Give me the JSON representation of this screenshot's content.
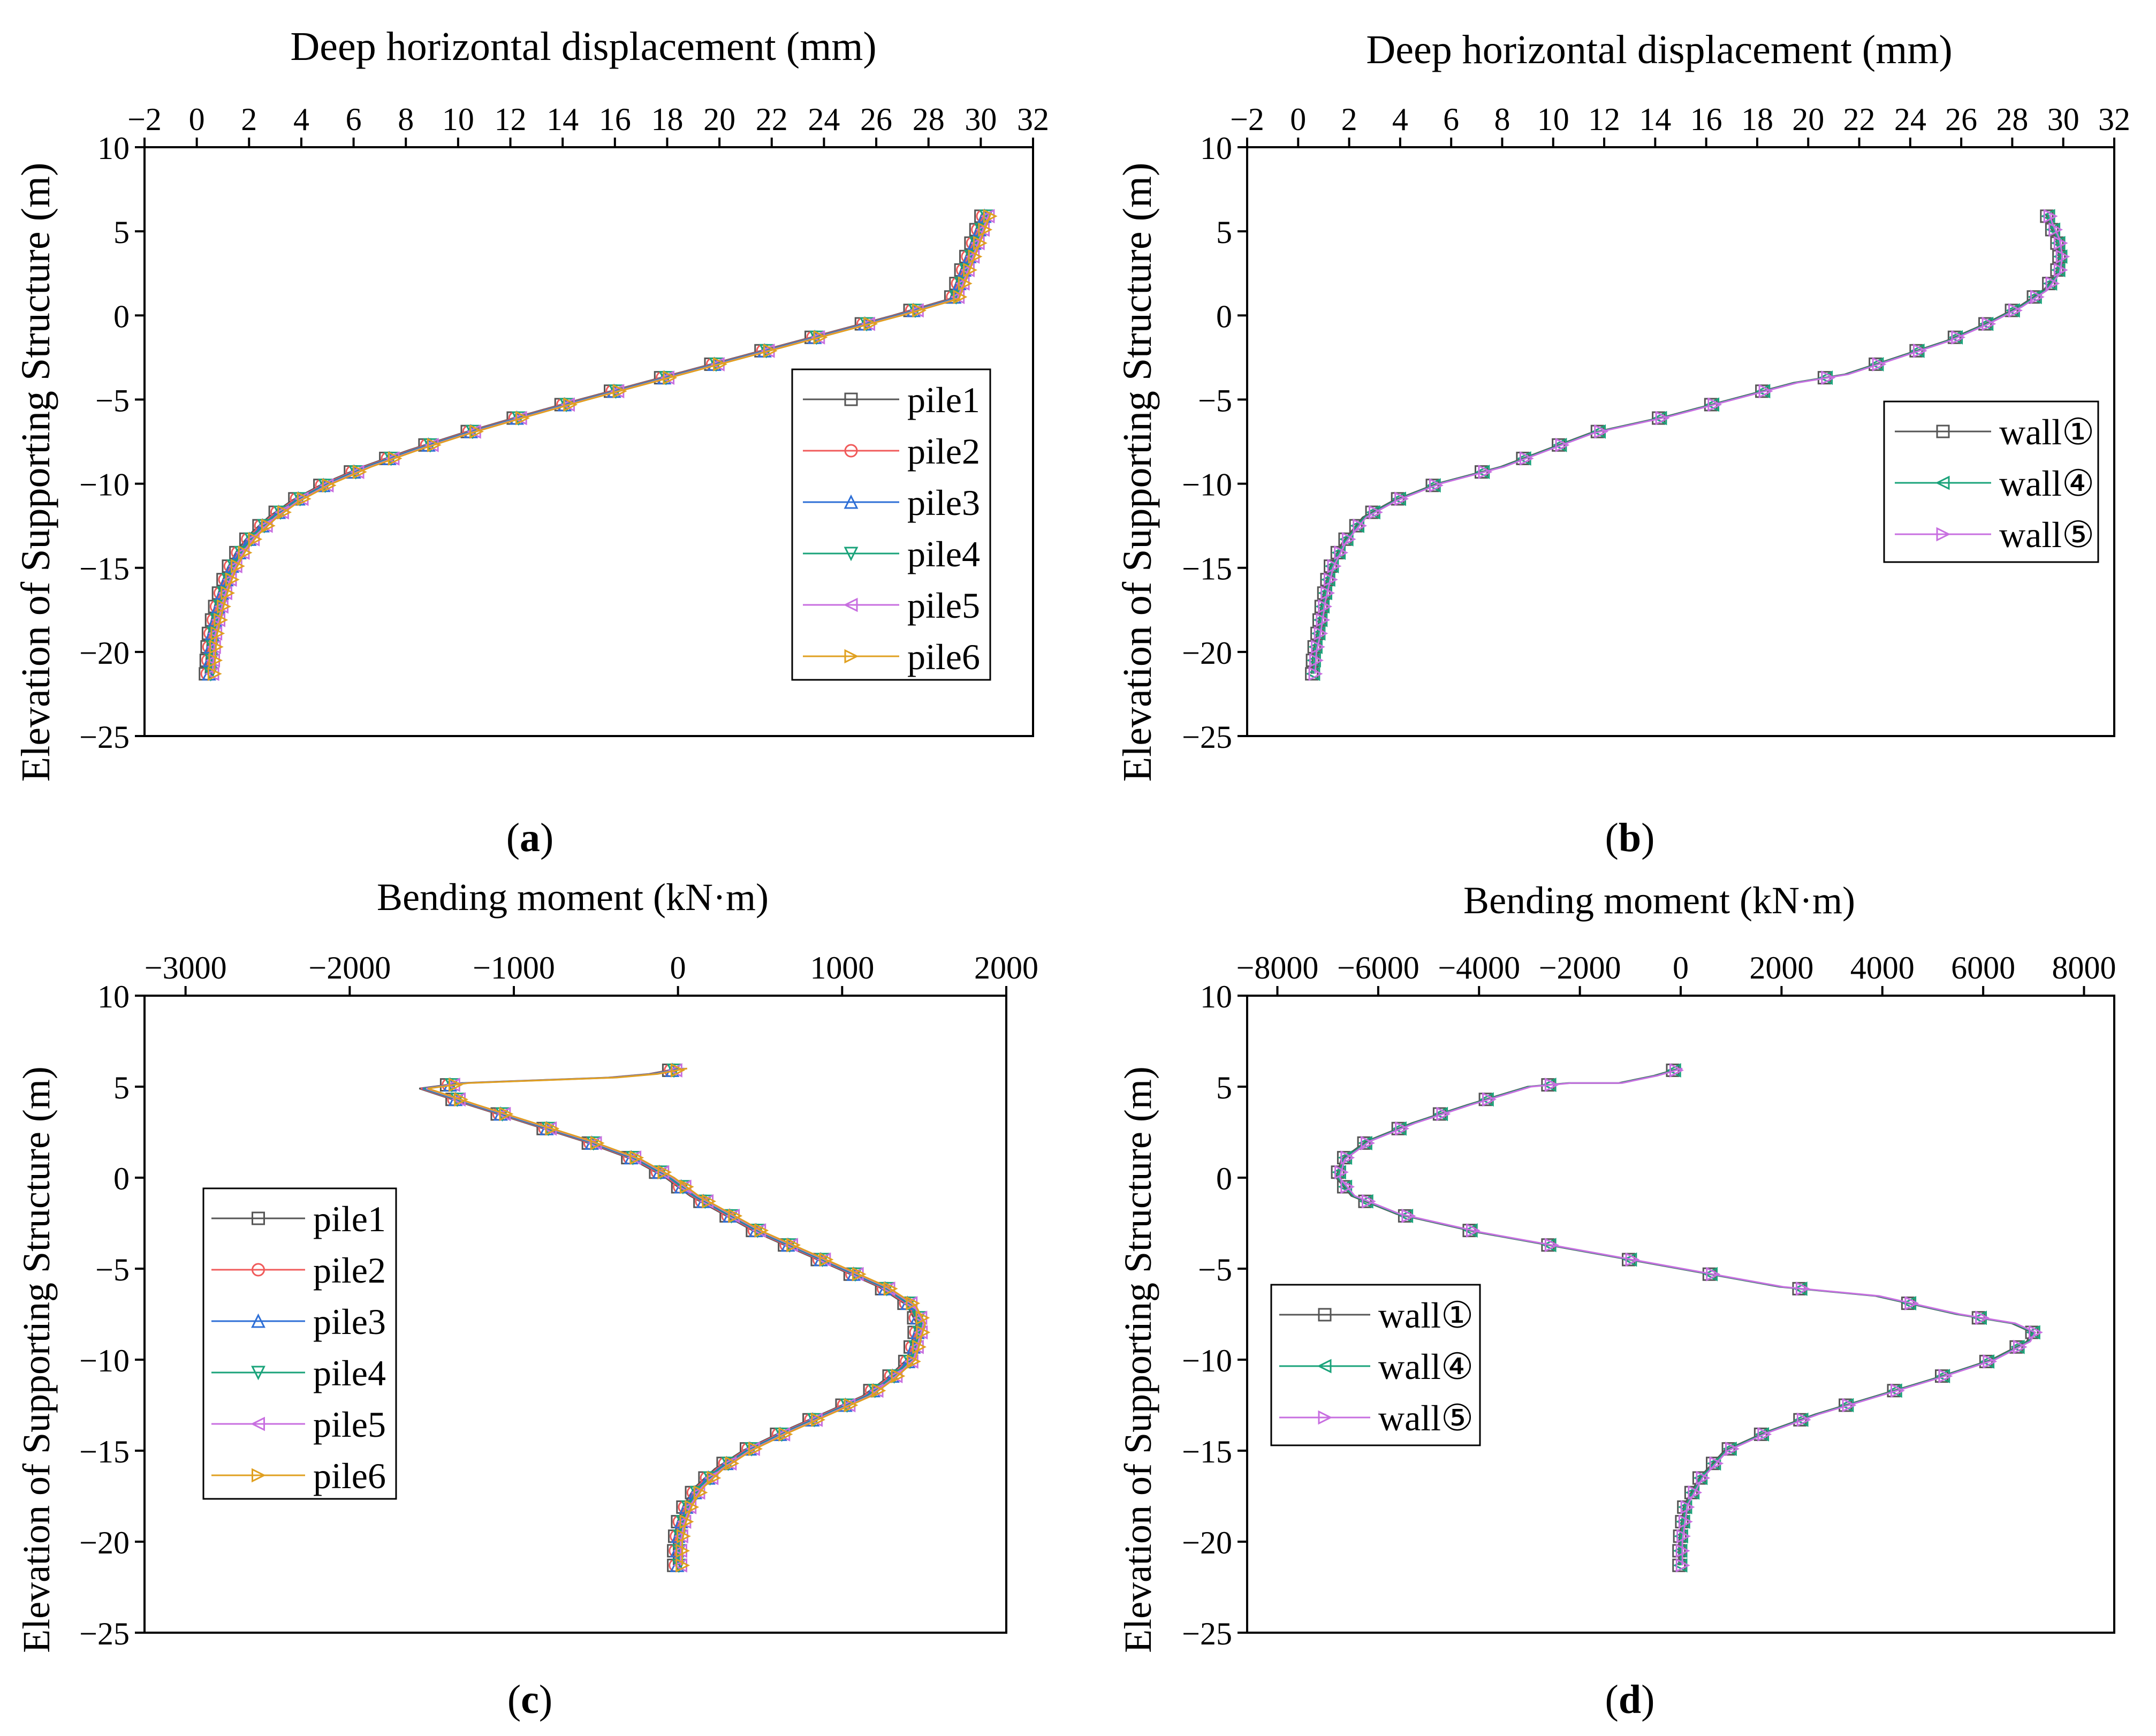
{
  "colors": {
    "pile1": "#555555",
    "pile2": "#f05a5a",
    "pile3": "#2e6fd6",
    "pile4": "#1aa37a",
    "pile5": "#c86fe0",
    "pile6": "#e0a020",
    "wall1": "#555555",
    "wall4": "#1aa37a",
    "wall5": "#c86fe0"
  },
  "chart_data": [
    {
      "id": "a",
      "type": "line",
      "panel_label": "a",
      "xlabel": "Deep horizontal displacement (mm)",
      "ylabel": "Elevation of Supporting Structure (m)",
      "xlim": [
        -2,
        32
      ],
      "ylim": [
        -25,
        10
      ],
      "xticks": [
        "−2",
        "0",
        "2",
        "4",
        "6",
        "8",
        "10",
        "12",
        "14",
        "16",
        "18",
        "20",
        "22",
        "24",
        "26",
        "28",
        "30",
        "32"
      ],
      "xtick_values": [
        -2,
        0,
        2,
        4,
        6,
        8,
        10,
        12,
        14,
        16,
        18,
        20,
        22,
        24,
        26,
        28,
        30,
        32
      ],
      "yticks": [
        "10",
        "5",
        "0",
        "−5",
        "−10",
        "−15",
        "−20",
        "−25"
      ],
      "ytick_values": [
        10,
        5,
        0,
        -5,
        -10,
        -15,
        -20,
        -25
      ],
      "legend_position": "lower-right",
      "series": [
        {
          "name": "pile1",
          "marker": "square",
          "color_key": "pile1"
        },
        {
          "name": "pile2",
          "marker": "circle",
          "color_key": "pile2"
        },
        {
          "name": "pile3",
          "marker": "triangle-up",
          "color_key": "pile3"
        },
        {
          "name": "pile4",
          "marker": "triangle-down",
          "color_key": "pile4"
        },
        {
          "name": "pile5",
          "marker": "triangle-left",
          "color_key": "pile5"
        },
        {
          "name": "pile6",
          "marker": "triangle-right",
          "color_key": "pile6"
        }
      ],
      "curve": {
        "x": [
          0.5,
          0.55,
          0.6,
          0.75,
          0.9,
          1.1,
          1.35,
          1.7,
          2.2,
          2.9,
          3.8,
          5.0,
          6.5,
          8.3,
          10.3,
          12.5,
          14.8,
          17.2,
          19.6,
          22.0,
          24.4,
          26.8,
          29.0,
          30.2
        ],
        "y": [
          -21.3,
          -20,
          -19,
          -18,
          -17,
          -16,
          -15,
          -14,
          -13,
          -12,
          -11,
          -10,
          -9,
          -8,
          -7,
          -6,
          -5,
          -4,
          -3,
          -2,
          -1,
          0,
          1,
          6
        ]
      }
    },
    {
      "id": "b",
      "type": "line",
      "panel_label": "b",
      "xlabel": "Deep horizontal displacement (mm)",
      "ylabel": "Elevation of Supporting Structure (m)",
      "xlim": [
        -2,
        32
      ],
      "ylim": [
        -25,
        10
      ],
      "xticks": [
        "−2",
        "0",
        "2",
        "4",
        "6",
        "8",
        "10",
        "12",
        "14",
        "16",
        "18",
        "20",
        "22",
        "24",
        "26",
        "28",
        "30",
        "32"
      ],
      "xtick_values": [
        -2,
        0,
        2,
        4,
        6,
        8,
        10,
        12,
        14,
        16,
        18,
        20,
        22,
        24,
        26,
        28,
        30,
        32
      ],
      "yticks": [
        "10",
        "5",
        "0",
        "−5",
        "−10",
        "−15",
        "−20",
        "−25"
      ],
      "ytick_values": [
        10,
        5,
        0,
        -5,
        -10,
        -15,
        -20,
        -25
      ],
      "legend_position": "right",
      "series": [
        {
          "name": "wall①",
          "marker": "square",
          "color_key": "wall1"
        },
        {
          "name": "wall④",
          "marker": "triangle-left",
          "color_key": "wall4"
        },
        {
          "name": "wall⑤",
          "marker": "triangle-right",
          "color_key": "wall5"
        }
      ],
      "curve": {
        "x": [
          0.6,
          0.65,
          0.8,
          1.0,
          1.3,
          1.8,
          2.6,
          3.8,
          5.5,
          8.0,
          11.5,
          14.5,
          17.0,
          19.5,
          21.5,
          23.5,
          25.5,
          27.0,
          28.3,
          29.3,
          29.8,
          29.9,
          29.8,
          29.5,
          29.4
        ],
        "y": [
          -21.3,
          -20,
          -19,
          -17,
          -15,
          -13.5,
          -12,
          -11,
          -10,
          -9,
          -7,
          -6,
          -5,
          -4,
          -3.5,
          -2.5,
          -1.5,
          -0.5,
          0.5,
          1.5,
          2.5,
          3.5,
          4.5,
          5.5,
          6
        ]
      }
    },
    {
      "id": "c",
      "type": "line",
      "panel_label": "c",
      "xlabel": "Bending moment (kN·m)",
      "ylabel": "Elevation of Supporting Structure (m)",
      "xlim": [
        -3250,
        2000
      ],
      "ylim": [
        -25,
        10
      ],
      "xticks": [
        "−3000",
        "−2000",
        "−1000",
        "0",
        "1000",
        "2000"
      ],
      "xtick_values": [
        -3000,
        -2000,
        -1000,
        0,
        1000,
        2000
      ],
      "yticks": [
        "10",
        "5",
        "0",
        "−5",
        "−10",
        "−15",
        "−20",
        "−25"
      ],
      "ytick_values": [
        10,
        5,
        0,
        -5,
        -10,
        -15,
        -20,
        -25
      ],
      "legend_position": "left",
      "series": [
        {
          "name": "pile1",
          "marker": "square",
          "color_key": "pile1"
        },
        {
          "name": "pile2",
          "marker": "circle",
          "color_key": "pile2"
        },
        {
          "name": "pile3",
          "marker": "triangle-up",
          "color_key": "pile3"
        },
        {
          "name": "pile4",
          "marker": "triangle-down",
          "color_key": "pile4"
        },
        {
          "name": "pile5",
          "marker": "triangle-left",
          "color_key": "pile5"
        },
        {
          "name": "pile6",
          "marker": "triangle-right",
          "color_key": "pile6"
        }
      ],
      "curve": {
        "x": [
          0,
          0,
          20,
          60,
          130,
          250,
          420,
          650,
          900,
          1150,
          1300,
          1420,
          1480,
          1420,
          1250,
          1000,
          750,
          500,
          300,
          100,
          -50,
          -250,
          -550,
          -900,
          -1250,
          -1550,
          -1300,
          -1000,
          -700,
          -400,
          -150,
          30
        ],
        "y": [
          -21.3,
          -20,
          -19,
          -18,
          -17,
          -16,
          -15,
          -14,
          -13,
          -12,
          -11,
          -10,
          -8,
          -7,
          -6,
          -5,
          -4,
          -3,
          -2,
          -1,
          0,
          1,
          2,
          3,
          4,
          4.9,
          5.2,
          5.3,
          5.4,
          5.5,
          5.7,
          6
        ]
      }
    },
    {
      "id": "d",
      "type": "line",
      "panel_label": "d",
      "xlabel": "Bending moment (kN·m)",
      "ylabel": "Elevation of  Supporting Structure (m)",
      "xlim": [
        -8600,
        8600
      ],
      "ylim": [
        -25,
        10
      ],
      "xticks": [
        "−8000",
        "−6000",
        "−4000",
        "−2000",
        "0",
        "2000",
        "4000",
        "6000",
        "8000"
      ],
      "xtick_values": [
        -8000,
        -6000,
        -4000,
        -2000,
        0,
        2000,
        4000,
        6000,
        8000
      ],
      "yticks": [
        "10",
        "5",
        "0",
        "−5",
        "−10",
        "−15",
        "−20",
        "−25"
      ],
      "ytick_values": [
        10,
        5,
        0,
        -5,
        -10,
        -15,
        -20,
        -25
      ],
      "legend_position": "left",
      "series": [
        {
          "name": "wall①",
          "marker": "square",
          "color_key": "wall1"
        },
        {
          "name": "wall④",
          "marker": "triangle-left",
          "color_key": "wall4"
        },
        {
          "name": "wall⑤",
          "marker": "triangle-right",
          "color_key": "wall5"
        }
      ],
      "curve": {
        "x": [
          0,
          0,
          100,
          400,
          900,
          1700,
          2700,
          3900,
          5100,
          6200,
          6900,
          7000,
          6600,
          5500,
          3900,
          2000,
          0,
          -2000,
          -4000,
          -5600,
          -6500,
          -6800,
          -6700,
          -6200,
          -5300,
          -4200,
          -3000,
          -2200,
          -1200,
          -500,
          0
        ],
        "y": [
          -21.3,
          -20,
          -18,
          -16.5,
          -15,
          -14,
          -13,
          -12,
          -11,
          -10,
          -9,
          -8.5,
          -8,
          -7.5,
          -6.5,
          -6,
          -5,
          -4,
          -3,
          -2,
          -1,
          0,
          1,
          2,
          3,
          4,
          5,
          5.2,
          5.2,
          5.6,
          6
        ]
      }
    }
  ]
}
